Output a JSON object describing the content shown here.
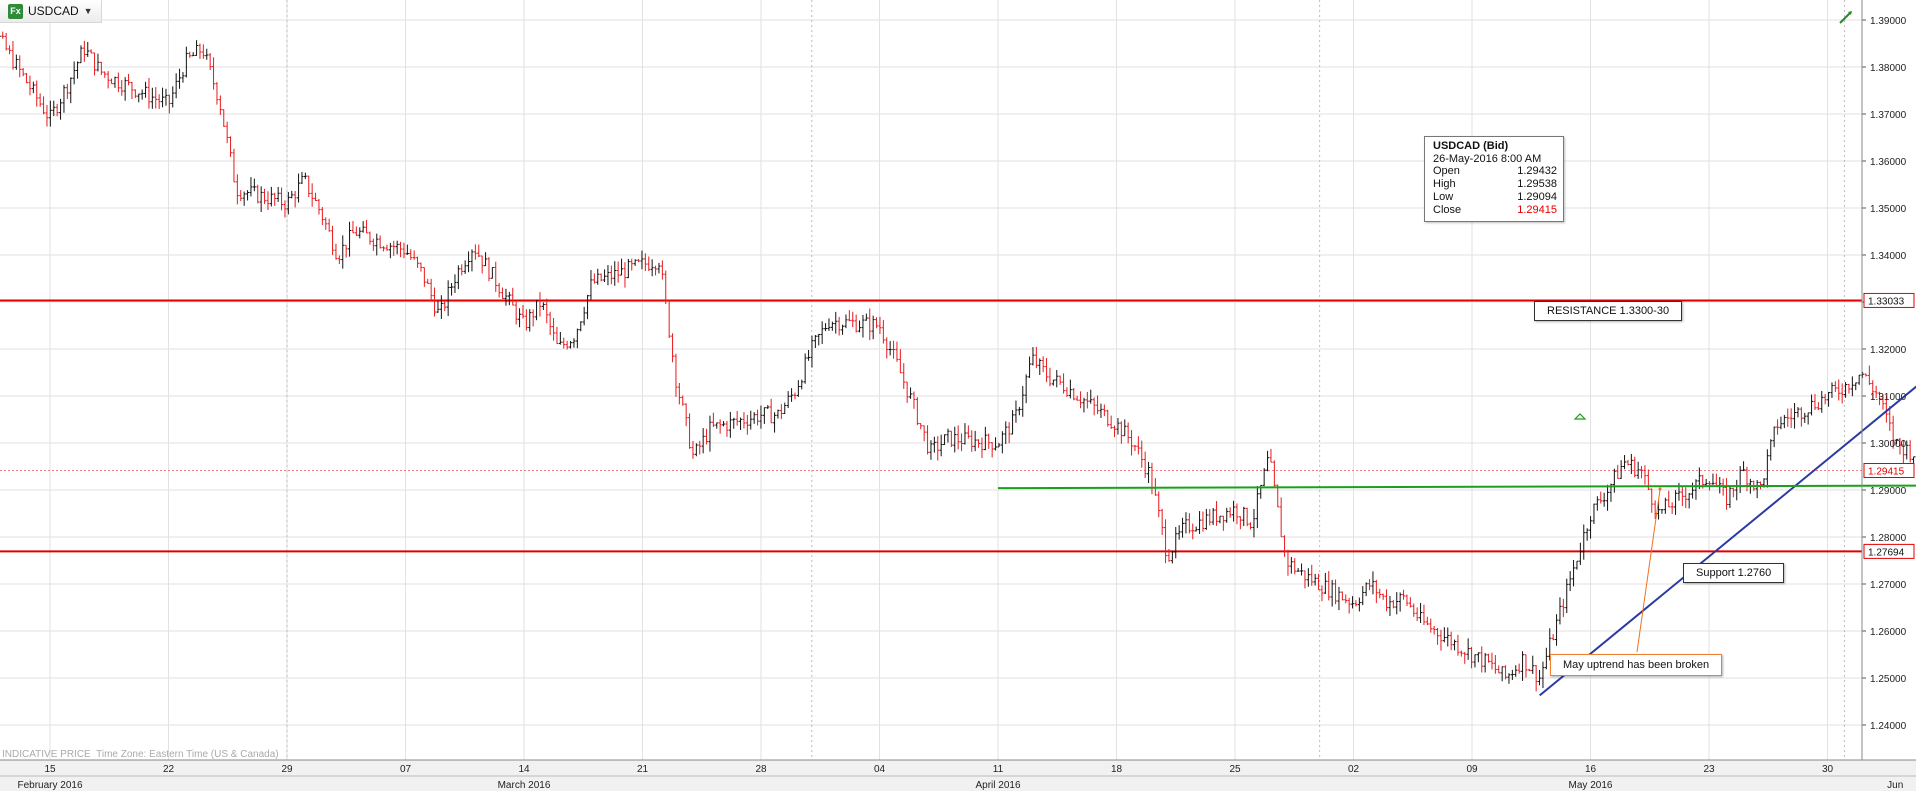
{
  "header": {
    "symbol": "USDCAD",
    "fx_badge": "Fx",
    "dropdown_icon": "caret-down-icon",
    "draw_icon": "pencil-trend-icon"
  },
  "info_box": {
    "title": "USDCAD (Bid)",
    "datetime": "26-May-2016 8:00 AM",
    "rows": [
      {
        "label": "Open",
        "value": "1.29432"
      },
      {
        "label": "High",
        "value": "1.29538"
      },
      {
        "label": "Low",
        "value": "1.29094"
      },
      {
        "label": "Close",
        "value": "1.29415"
      }
    ]
  },
  "annotations": {
    "resistance": "RESISTANCE 1.3300-30",
    "support": "Support 1.2760",
    "note": "May uptrend has been broken"
  },
  "footer": {
    "indicative": "INDICATIVE PRICE",
    "timezone": "Time Zone: Eastern Time (US & Canada)"
  },
  "colors": {
    "bull": "#111111",
    "bear": "#e8191c",
    "level_line": "#e00000",
    "trend_line": "#2a3aa0",
    "green_line": "#1aa01a",
    "note_color": "#f07020",
    "grid": "#e2e2e2"
  },
  "chart_data": {
    "type": "ohlc",
    "symbol": "USDCAD",
    "interval": "4H",
    "y_axis": {
      "range": [
        1.2375,
        1.3935
      ],
      "ticks": [
        "1.39000",
        "1.38000",
        "1.37000",
        "1.36000",
        "1.35000",
        "1.34000",
        "1.33000",
        "1.32000",
        "1.31000",
        "1.30000",
        "1.29000",
        "1.28000",
        "1.27000",
        "1.26000",
        "1.25000",
        "1.24000"
      ]
    },
    "x_axis": {
      "day_ticks": [
        {
          "label": "15",
          "date": "2016-02-15"
        },
        {
          "label": "22",
          "date": "2016-02-22"
        },
        {
          "label": "29",
          "date": "2016-02-29"
        },
        {
          "label": "07",
          "date": "2016-03-07"
        },
        {
          "label": "14",
          "date": "2016-03-14"
        },
        {
          "label": "21",
          "date": "2016-03-21"
        },
        {
          "label": "28",
          "date": "2016-03-28"
        },
        {
          "label": "04",
          "date": "2016-04-04"
        },
        {
          "label": "11",
          "date": "2016-04-11"
        },
        {
          "label": "18",
          "date": "2016-04-18"
        },
        {
          "label": "25",
          "date": "2016-04-25"
        },
        {
          "label": "02",
          "date": "2016-05-02"
        },
        {
          "label": "09",
          "date": "2016-05-09"
        },
        {
          "label": "16",
          "date": "2016-05-16"
        },
        {
          "label": "23",
          "date": "2016-05-23"
        },
        {
          "label": "30",
          "date": "2016-05-30"
        }
      ],
      "month_labels": [
        {
          "label": "February 2016",
          "date": "2016-02-15"
        },
        {
          "label": "March 2016",
          "date": "2016-03-14"
        },
        {
          "label": "April 2016",
          "date": "2016-04-11"
        },
        {
          "label": "May 2016",
          "date": "2016-05-16"
        },
        {
          "label": "Jun",
          "date": "2016-06-03"
        }
      ]
    },
    "price_labels": [
      {
        "value": 1.33033,
        "text": "1.33033",
        "color": "#e00000"
      },
      {
        "value": 1.29415,
        "text": "1.29415",
        "color": "#e00000"
      },
      {
        "value": 1.27694,
        "text": "1.27694",
        "color": "#e00000"
      }
    ],
    "horizontal_lines": [
      {
        "name": "resistance",
        "value": 1.33033
      },
      {
        "name": "support",
        "value": 1.27694
      },
      {
        "name": "last-price",
        "value": 1.29415
      }
    ],
    "anchors": [
      [
        "2016-02-10",
        1.382
      ],
      [
        "2016-02-11",
        1.39
      ],
      [
        "2016-02-12",
        1.386
      ],
      [
        "2016-02-15",
        1.369
      ],
      [
        "2016-02-16",
        1.376
      ],
      [
        "2016-02-17",
        1.384
      ],
      [
        "2016-02-18",
        1.379
      ],
      [
        "2016-02-19",
        1.377
      ],
      [
        "2016-02-22",
        1.372
      ],
      [
        "2016-02-23",
        1.381
      ],
      [
        "2016-02-24",
        1.384
      ],
      [
        "2016-02-25",
        1.373
      ],
      [
        "2016-02-26",
        1.354
      ],
      [
        "2016-02-29",
        1.351
      ],
      [
        "2016-03-01",
        1.356
      ],
      [
        "2016-03-02",
        1.349
      ],
      [
        "2016-03-03",
        1.34
      ],
      [
        "2016-03-04",
        1.345
      ],
      [
        "2016-03-07",
        1.341
      ],
      [
        "2016-03-08",
        1.336
      ],
      [
        "2016-03-09",
        1.327
      ],
      [
        "2016-03-10",
        1.336
      ],
      [
        "2016-03-11",
        1.342
      ],
      [
        "2016-03-14",
        1.325
      ],
      [
        "2016-03-15",
        1.33
      ],
      [
        "2016-03-16",
        1.32
      ],
      [
        "2016-03-17",
        1.323
      ],
      [
        "2016-03-18",
        1.334
      ],
      [
        "2016-03-21",
        1.338
      ],
      [
        "2016-03-22",
        1.339
      ],
      [
        "2016-03-23",
        1.313
      ],
      [
        "2016-03-24",
        1.297
      ],
      [
        "2016-03-25",
        1.303
      ],
      [
        "2016-03-28",
        1.306
      ],
      [
        "2016-03-29",
        1.306
      ],
      [
        "2016-03-30",
        1.311
      ],
      [
        "2016-03-31",
        1.32
      ],
      [
        "2016-04-01",
        1.326
      ],
      [
        "2016-04-04",
        1.325
      ],
      [
        "2016-04-05",
        1.317
      ],
      [
        "2016-04-06",
        1.308
      ],
      [
        "2016-04-07",
        1.298
      ],
      [
        "2016-04-08",
        1.301
      ],
      [
        "2016-04-11",
        1.3
      ],
      [
        "2016-04-12",
        1.305
      ],
      [
        "2016-04-13",
        1.318
      ],
      [
        "2016-04-14",
        1.314
      ],
      [
        "2016-04-15",
        1.312
      ],
      [
        "2016-04-18",
        1.304
      ],
      [
        "2016-04-19",
        1.3
      ],
      [
        "2016-04-20",
        1.293
      ],
      [
        "2016-04-21",
        1.276
      ],
      [
        "2016-04-22",
        1.282
      ],
      [
        "2016-04-25",
        1.286
      ],
      [
        "2016-04-26",
        1.283
      ],
      [
        "2016-04-27",
        1.297
      ],
      [
        "2016-04-28",
        1.275
      ],
      [
        "2016-04-29",
        1.272
      ],
      [
        "2016-05-02",
        1.266
      ],
      [
        "2016-05-03",
        1.27
      ],
      [
        "2016-05-04",
        1.266
      ],
      [
        "2016-05-05",
        1.267
      ],
      [
        "2016-05-06",
        1.262
      ],
      [
        "2016-05-09",
        1.255
      ],
      [
        "2016-05-10",
        1.253
      ],
      [
        "2016-05-11",
        1.25
      ],
      [
        "2016-05-12",
        1.254
      ],
      [
        "2016-05-13",
        1.25
      ],
      [
        "2016-05-16",
        1.285
      ],
      [
        "2016-05-17",
        1.29
      ],
      [
        "2016-05-18",
        1.296
      ],
      [
        "2016-05-19",
        1.294
      ],
      [
        "2016-05-20",
        1.285
      ],
      [
        "2016-05-23",
        1.293
      ],
      [
        "2016-05-24",
        1.288
      ],
      [
        "2016-05-25",
        1.294
      ],
      [
        "2016-05-26",
        1.29
      ],
      [
        "2016-05-27",
        1.304
      ],
      [
        "2016-05-30",
        1.31
      ],
      [
        "2016-05-31",
        1.312
      ],
      [
        "2016-06-01",
        1.315
      ],
      [
        "2016-06-02",
        1.31
      ],
      [
        "2016-06-03",
        1.3
      ],
      [
        "2016-06-06",
        1.2941
      ]
    ],
    "trend_line": {
      "from": [
        "2016-05-13",
        1.2463
      ],
      "to": [
        "2016-06-10",
        1.329
      ]
    },
    "green_line": {
      "from": [
        "2016-04-11",
        1.2904
      ],
      "to": [
        "2016-06-10",
        1.291
      ]
    }
  }
}
